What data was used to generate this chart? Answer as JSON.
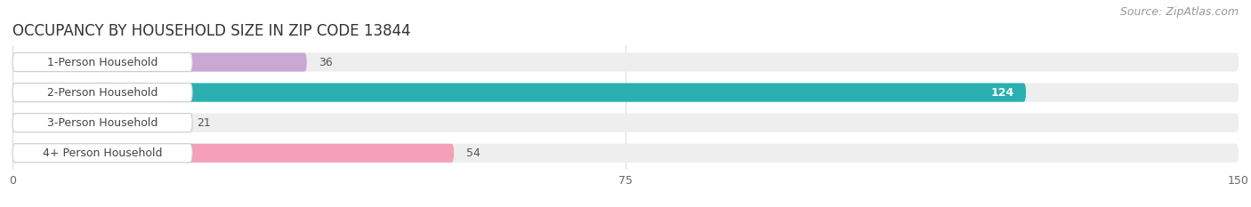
{
  "title": "OCCUPANCY BY HOUSEHOLD SIZE IN ZIP CODE 13844",
  "source": "Source: ZipAtlas.com",
  "categories": [
    "1-Person Household",
    "2-Person Household",
    "3-Person Household",
    "4+ Person Household"
  ],
  "values": [
    36,
    124,
    21,
    54
  ],
  "bar_colors": [
    "#c9a8d4",
    "#2ab0b0",
    "#b0b8e8",
    "#f4a0b8"
  ],
  "xlim": [
    0,
    150
  ],
  "xticks": [
    0,
    75,
    150
  ],
  "background_color": "#ffffff",
  "bar_bg_color": "#eeeeee",
  "title_fontsize": 12,
  "source_fontsize": 9,
  "label_fontsize": 9,
  "value_fontsize": 9,
  "figsize": [
    14.06,
    2.33
  ],
  "dpi": 100
}
